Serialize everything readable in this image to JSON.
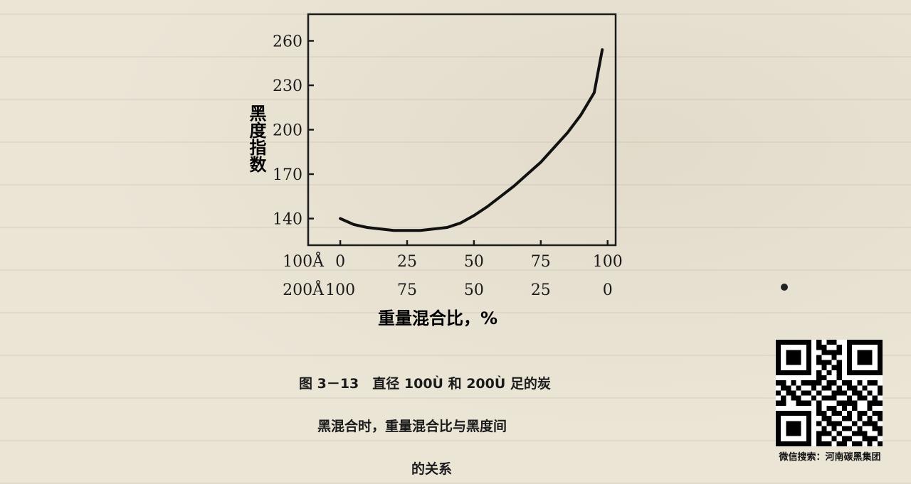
{
  "chart_data": {
    "type": "line",
    "ylabel": "黑度指数",
    "xlabel": "重量混合比，%",
    "yticks": [
      140,
      170,
      200,
      230,
      260
    ],
    "ylim": [
      122,
      278
    ],
    "xlim": [
      -12,
      103
    ],
    "x_axis_rows": [
      {
        "name": "100Å",
        "ticks": [
          "0",
          "25",
          "50",
          "75",
          "100"
        ]
      },
      {
        "name": "200Å",
        "ticks": [
          "100",
          "75",
          "50",
          "25",
          "0"
        ]
      }
    ],
    "x_tick_values": [
      0,
      25,
      50,
      75,
      100
    ],
    "series": [
      {
        "x": [
          0,
          5,
          10,
          15,
          20,
          25,
          30,
          35,
          40,
          45,
          50,
          55,
          60,
          65,
          70,
          75,
          80,
          85,
          90,
          95,
          98
        ],
        "y": [
          140,
          136,
          134,
          133,
          132,
          132,
          132,
          133,
          134,
          137,
          142,
          148,
          155,
          162,
          170,
          178,
          188,
          198,
          210,
          225,
          254
        ]
      }
    ],
    "grid": false
  },
  "caption": {
    "line1": "图 3－13　直径 100Ù 和 200Ù 足的炭",
    "line2": "黑混合时，重量混合比与黑度间",
    "line3": "的关系"
  },
  "watermark": {
    "text": "微信搜索：河南碳黑集团"
  }
}
